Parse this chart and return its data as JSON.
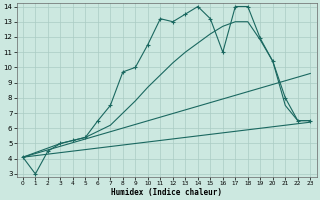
{
  "xlabel": "Humidex (Indice chaleur)",
  "xlim": [
    -0.5,
    23.5
  ],
  "ylim": [
    2.8,
    14.2
  ],
  "yticks": [
    3,
    4,
    5,
    6,
    7,
    8,
    9,
    10,
    11,
    12,
    13,
    14
  ],
  "xticks": [
    0,
    1,
    2,
    3,
    4,
    5,
    6,
    7,
    8,
    9,
    10,
    11,
    12,
    13,
    14,
    15,
    16,
    17,
    18,
    19,
    20,
    21,
    22,
    23
  ],
  "background_color": "#cce8e0",
  "grid_color": "#aaccc4",
  "line_color": "#1a6860",
  "line1_x": [
    0,
    1,
    2,
    3,
    4,
    5,
    6,
    7,
    8,
    9,
    10,
    11,
    12,
    13,
    14,
    15,
    16,
    17,
    18,
    19,
    20,
    21,
    22,
    23
  ],
  "line1_y": [
    4.1,
    3.0,
    4.5,
    5.0,
    5.2,
    5.4,
    6.5,
    7.5,
    9.7,
    10.0,
    11.5,
    13.2,
    13.0,
    13.5,
    14.0,
    13.2,
    11.0,
    14.0,
    14.0,
    11.9,
    10.4,
    8.0,
    6.5,
    6.5
  ],
  "line2_x": [
    0,
    3,
    4,
    5,
    6,
    7,
    8,
    9,
    10,
    11,
    12,
    13,
    14,
    15,
    16,
    17,
    18,
    19,
    20,
    21,
    22,
    23
  ],
  "line2_y": [
    4.1,
    5.0,
    5.2,
    5.4,
    5.8,
    6.2,
    7.0,
    7.8,
    8.7,
    9.5,
    10.3,
    11.0,
    11.6,
    12.2,
    12.7,
    13.0,
    13.0,
    11.8,
    10.4,
    7.5,
    6.5,
    6.5
  ],
  "line3_x": [
    0,
    23
  ],
  "line3_y": [
    4.1,
    9.6
  ],
  "line4_x": [
    0,
    23
  ],
  "line4_y": [
    4.1,
    6.4
  ]
}
